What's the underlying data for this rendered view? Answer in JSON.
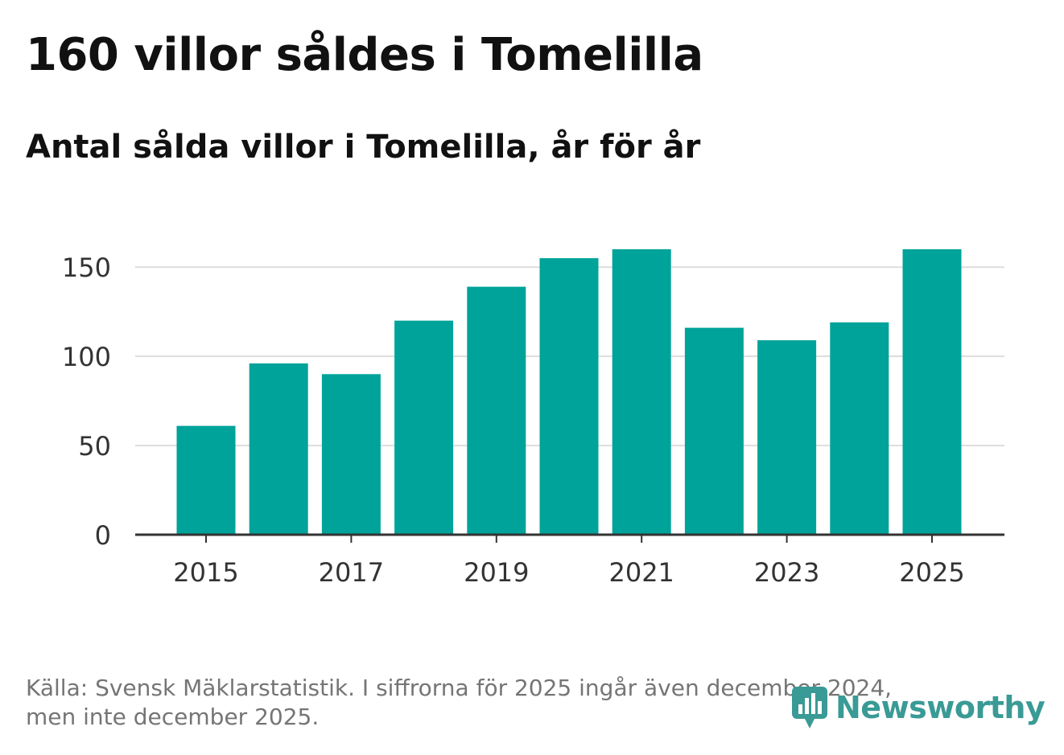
{
  "header": {
    "title": "160 villor såldes i Tomelilla",
    "subtitle": "Antal sålda villor i Tomelilla, år för år"
  },
  "footer": {
    "source_line1": "Källa: Svensk Mäklarstatistik. I siffrorna för 2025 ingår även december 2024,",
    "source_line2": "men inte december 2025."
  },
  "brand": {
    "name": "Newsworthy",
    "icon": "newsworthy-logo-icon",
    "color": "#3a9a95"
  },
  "colors": {
    "bar": "#00a39a",
    "grid": "#dddddd",
    "axis": "#333333",
    "tick_text": "#333333"
  },
  "chart_data": {
    "type": "bar",
    "title": "160 villor såldes i Tomelilla",
    "subtitle": "Antal sålda villor i Tomelilla, år för år",
    "xlabel": "",
    "ylabel": "",
    "categories": [
      "2015",
      "2016",
      "2017",
      "2018",
      "2019",
      "2020",
      "2021",
      "2022",
      "2023",
      "2024",
      "2025"
    ],
    "values": [
      61,
      96,
      90,
      120,
      139,
      155,
      160,
      116,
      109,
      119,
      160
    ],
    "x_tick_labels": [
      "2015",
      "2017",
      "2019",
      "2021",
      "2023",
      "2025"
    ],
    "y_ticks": [
      0,
      50,
      100,
      150
    ],
    "ylim": [
      0,
      160
    ],
    "grid": true,
    "legend": "none"
  }
}
